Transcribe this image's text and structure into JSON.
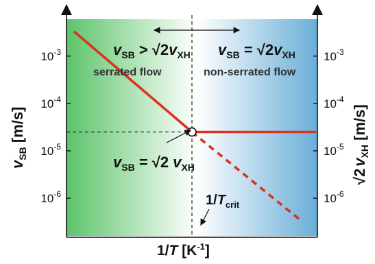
{
  "chart_data": {
    "type": "line",
    "title": "",
    "xlabel": {
      "prefix": "1/",
      "var": "T",
      "unit_open": " [K",
      "unit_sup": "-1",
      "unit_close": "]"
    },
    "ylabel_left": {
      "var": "v",
      "sub": "SB",
      "unit": " [m/s]"
    },
    "ylabel_right": {
      "root": "√2",
      "var": "v",
      "sub": "XH",
      "unit": " [m/s]"
    },
    "yscale": "log",
    "ylim": [
      1.5e-07,
      0.006
    ],
    "xlim": [
      0,
      1
    ],
    "yticks": [
      {
        "value": 0.001,
        "base": "10",
        "exp": "-3"
      },
      {
        "value": 0.0001,
        "base": "10",
        "exp": "-4"
      },
      {
        "value": 1e-05,
        "base": "10",
        "exp": "-5"
      },
      {
        "value": 1e-06,
        "base": "10",
        "exp": "-6"
      }
    ],
    "x_crit": 0.5,
    "series": [
      {
        "name": "",
        "style": "solid",
        "color": "#d9321f",
        "x": [
          0.03,
          0.5
        ],
        "y": [
          0.0033,
          2.5e-05
        ]
      },
      {
        "name": "",
        "style": "solid",
        "color": "#d9321f",
        "x": [
          0.5,
          0.995
        ],
        "y": [
          2.5e-05,
          2.5e-05
        ]
      },
      {
        "name": "",
        "style": "dashed",
        "color": "#d9321f",
        "x": [
          0.5,
          0.94
        ],
        "y": [
          2.5e-05,
          3.2e-07
        ]
      }
    ],
    "annotations": {
      "left_condition": {
        "v": "v",
        "sub1": "SB",
        "op": " > ",
        "root": "√2",
        "v2": "v",
        "sub2": "XH"
      },
      "right_condition": {
        "v": "v",
        "sub1": "SB",
        "op": " = ",
        "root": "√2",
        "v2": "v",
        "sub2": "XH"
      },
      "region_left": "serrated flow",
      "region_right": "non-serrated flow",
      "intersection": {
        "v": "v",
        "sub1": "SB",
        "op": " = ",
        "root": "√2 ",
        "v2": "v",
        "sub2": "XH"
      },
      "critical": {
        "prefix": "1/",
        "var": "T",
        "sub": "crit"
      }
    },
    "colors": {
      "left_region": "#5cc46a",
      "right_region": "#6aaed8",
      "line": "#d9321f"
    }
  }
}
